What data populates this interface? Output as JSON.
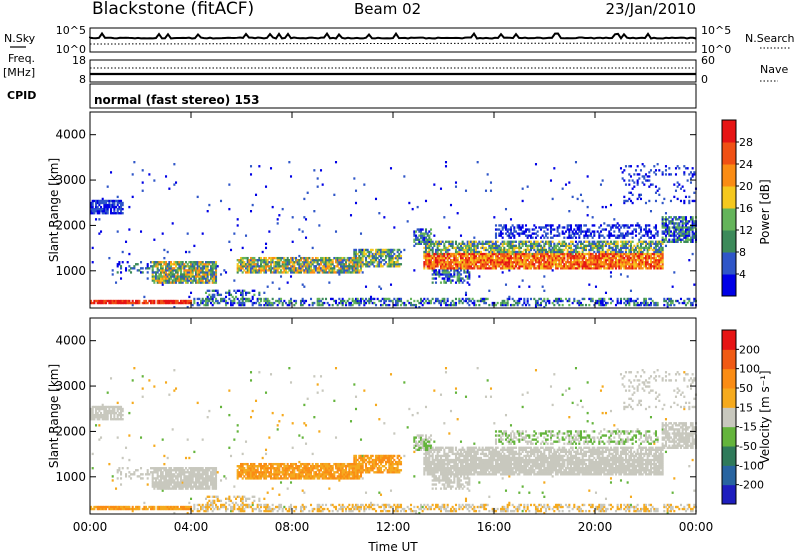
{
  "header": {
    "station": "Blackstone (fitACF)",
    "beam": "Beam 02",
    "date": "23/Jan/2010"
  },
  "param_labels": {
    "nsky": "N.Sky",
    "nsearch": "N.Search",
    "freq": "Freq.",
    "freq_unit": "[MHz]",
    "nave": "Nave",
    "cpid": "CPID",
    "cpid_value": "normal (fast stereo) 153"
  },
  "param_ticks": {
    "noise_top": "10^5",
    "noise_bottom": "10^0",
    "freq_top": "18",
    "freq_bottom": "8",
    "nave_top": "60",
    "nave_bottom": "0"
  },
  "colors": {
    "power_scale": [
      "#0000e6",
      "#2f56c8",
      "#3c8a5a",
      "#64b45a",
      "#f5c81e",
      "#fa8c14",
      "#f05014",
      "#e61414"
    ],
    "velocity_scale": [
      "#e61414",
      "#f05a14",
      "#fa8c14",
      "#f5aa1e",
      "#c8c8be",
      "#64b43c",
      "#2f7a5a",
      "#2864a0",
      "#1e1ebe"
    ]
  },
  "chart_data": [
    {
      "type": "heatmap",
      "name": "power",
      "xlabel": "",
      "ylabel": "Slant Range [km]",
      "x_ticks": [
        "00:00",
        "04:00",
        "08:00",
        "12:00",
        "16:00",
        "20:00",
        "00:00"
      ],
      "y_ticks": [
        "1000",
        "2000",
        "3000",
        "4000"
      ],
      "xlim": [
        0,
        24
      ],
      "ylim": [
        180,
        4500
      ],
      "colorbar_label": "Power [dB]",
      "colorbar_ticks": [
        "4",
        "8",
        "12",
        "16",
        "20",
        "24",
        "28"
      ],
      "colorbar_range": [
        0,
        32
      ]
    },
    {
      "type": "heatmap",
      "name": "velocity",
      "xlabel": "Time UT",
      "ylabel": "Slant Range [km]",
      "x_ticks": [
        "00:00",
        "04:00",
        "08:00",
        "12:00",
        "16:00",
        "20:00",
        "00:00"
      ],
      "y_ticks": [
        "1000",
        "2000",
        "3000",
        "4000"
      ],
      "xlim": [
        0,
        24
      ],
      "ylim": [
        180,
        4500
      ],
      "colorbar_label": "Velocity [m s⁻¹]",
      "colorbar_ticks": [
        "200",
        "100",
        "50",
        "15",
        "-15",
        "-50",
        "-100",
        "-200"
      ]
    }
  ]
}
